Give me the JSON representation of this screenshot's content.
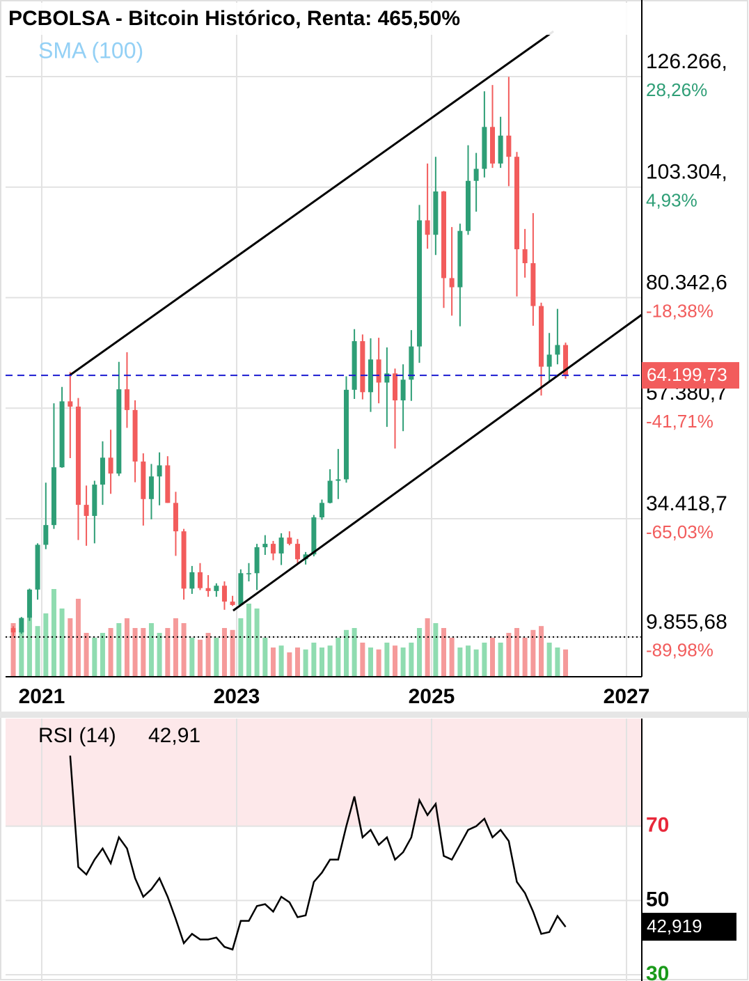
{
  "chart_data": [
    {
      "type": "candlestick",
      "title": "PCBOLSA - Bitcoin Histórico, Renta: 465,50%",
      "subtitle": "SMA (100)",
      "x": [
        2020.708,
        2020.792,
        2020.875,
        2020.958,
        2021.042,
        2021.125,
        2021.208,
        2021.292,
        2021.375,
        2021.458,
        2021.542,
        2021.625,
        2021.708,
        2021.792,
        2021.875,
        2021.958,
        2022.042,
        2022.125,
        2022.208,
        2022.292,
        2022.375,
        2022.458,
        2022.542,
        2022.625,
        2022.708,
        2022.792,
        2022.875,
        2022.958,
        2023.042,
        2023.125,
        2023.208,
        2023.292,
        2023.375,
        2023.458,
        2023.542,
        2023.625,
        2023.708,
        2023.792,
        2023.875,
        2023.958,
        2024.042,
        2024.125,
        2024.208,
        2024.292,
        2024.375,
        2024.458,
        2024.542,
        2024.625,
        2024.708,
        2024.792,
        2024.875,
        2024.958,
        2025.042,
        2025.125,
        2025.208,
        2025.292,
        2025.375,
        2025.458,
        2025.542,
        2025.625,
        2025.708,
        2025.792,
        2025.875,
        2025.958,
        2026.042,
        2026.125,
        2026.208,
        2026.292,
        2026.375
      ],
      "open": [
        11700,
        10800,
        13800,
        19700,
        29000,
        33100,
        45100,
        58800,
        57700,
        37300,
        35000,
        41500,
        47100,
        43800,
        61300,
        57000,
        46300,
        38500,
        43200,
        45500,
        37700,
        31800,
        19900,
        23300,
        20000,
        19400,
        20500,
        17200,
        16500,
        23100,
        23100,
        28500,
        29200,
        27200,
        30500,
        29200,
        26000,
        27000,
        34700,
        37700,
        42300,
        42600,
        61200,
        71300,
        60700,
        67500,
        62700,
        64600,
        59000,
        63300,
        70200,
        96400,
        93400,
        102400,
        84400,
        82500,
        94200,
        104600,
        107100,
        115800,
        108200,
        114000,
        109600,
        90400,
        87500,
        78600,
        66000,
        68500,
        70500
      ],
      "high": [
        12100,
        14000,
        19900,
        29300,
        41900,
        58400,
        61800,
        64900,
        59500,
        41300,
        42300,
        50500,
        52900,
        67000,
        69000,
        59000,
        48000,
        45800,
        48200,
        47400,
        40000,
        32300,
        24600,
        25200,
        22700,
        21000,
        21400,
        18400,
        23900,
        25200,
        29200,
        31000,
        29800,
        31400,
        31800,
        30200,
        27500,
        35200,
        38400,
        44700,
        48900,
        64000,
        73800,
        72700,
        71900,
        72000,
        70000,
        65600,
        66500,
        73600,
        99600,
        108200,
        109600,
        102500,
        95000,
        95700,
        112000,
        110400,
        123200,
        124500,
        117900,
        126200,
        110600,
        94600,
        97900,
        79300,
        73000,
        78000,
        71000
      ],
      "low": [
        10000,
        10500,
        13200,
        17600,
        28100,
        32300,
        45000,
        47000,
        30000,
        28800,
        29300,
        37300,
        39600,
        43300,
        53300,
        42000,
        33000,
        34300,
        37200,
        37700,
        26700,
        17600,
        18800,
        19600,
        18200,
        18200,
        15500,
        16300,
        16500,
        21400,
        19600,
        26900,
        25800,
        24800,
        28900,
        25200,
        24900,
        26600,
        34200,
        37600,
        38500,
        41900,
        59300,
        59200,
        56600,
        58400,
        53500,
        49000,
        52600,
        58900,
        66800,
        90500,
        89200,
        78200,
        76600,
        74400,
        93400,
        98200,
        105300,
        107300,
        107300,
        103500,
        80600,
        84500,
        74500,
        60000,
        63000,
        66500,
        63500
      ],
      "close": [
        10800,
        13800,
        19700,
        29000,
        33100,
        45100,
        58800,
        57700,
        37300,
        35000,
        41500,
        47100,
        43800,
        61300,
        57000,
        46300,
        38500,
        43200,
        45500,
        37700,
        31800,
        19900,
        23300,
        20000,
        19400,
        20500,
        17200,
        16500,
        23100,
        23100,
        28500,
        29200,
        27200,
        30500,
        29200,
        26000,
        27000,
        34700,
        37700,
        42300,
        42600,
        61200,
        71300,
        60700,
        67500,
        62700,
        64600,
        59000,
        63300,
        70200,
        96400,
        93400,
        102400,
        84400,
        82500,
        94200,
        104600,
        107100,
        115800,
        108200,
        114000,
        109600,
        90400,
        87500,
        78600,
        66000,
        68500,
        70500,
        64200
      ],
      "volume": [
        55,
        48,
        60,
        52,
        65,
        90,
        70,
        60,
        80,
        45,
        40,
        45,
        50,
        55,
        60,
        50,
        50,
        55,
        45,
        50,
        60,
        55,
        40,
        38,
        45,
        40,
        50,
        48,
        60,
        75,
        70,
        40,
        30,
        32,
        25,
        30,
        28,
        35,
        30,
        32,
        40,
        48,
        50,
        35,
        30,
        28,
        35,
        32,
        30,
        35,
        50,
        60,
        55,
        50,
        40,
        30,
        32,
        28,
        35,
        40,
        35,
        45,
        50,
        40,
        48,
        52,
        35,
        30,
        28
      ],
      "volume_ylim": [
        0,
        100
      ],
      "up_color": "#2e9e76",
      "down_color": "#f25c5c",
      "up_volume_color": "#8fdcb0",
      "down_volume_color": "#f59a9a",
      "xlim": [
        2020.629,
        2027.157
      ],
      "xticks": [
        2021,
        2023,
        2025,
        2027
      ],
      "ylim": [
        1590,
        142170
      ],
      "yticks": [
        {
          "value": 126266,
          "label": "126.266,",
          "change": {
            "value": 28.26,
            "label": "28,26%"
          }
        },
        {
          "value": 103304,
          "label": "103.304,",
          "change": {
            "value": 4.93,
            "label": "4,93%"
          }
        },
        {
          "value": 80342.6,
          "label": "80.342,6",
          "change": {
            "value": -18.38,
            "label": "-18,38%"
          }
        },
        {
          "value": 57380.7,
          "label": "57.380,7",
          "change": {
            "value": -41.71,
            "label": "-41,71%"
          }
        },
        {
          "value": 34418.7,
          "label": "34.418,7",
          "change": {
            "value": -65.03,
            "label": "-65,03%"
          }
        },
        {
          "value": 9855.68,
          "label": "9.855,68",
          "change": {
            "value": -89.98,
            "label": "-89,98%"
          }
        }
      ],
      "dotted_line_value": 9855.68,
      "last_price": {
        "value": 64199.73,
        "label": "64.199,73"
      },
      "channel_lines": [
        {
          "x": [
            2021.286,
            2026.25
          ],
          "y": [
            64200,
            135660
          ]
        },
        {
          "x": [
            2022.964,
            2027.157
          ],
          "y": [
            15326,
            76795
          ]
        }
      ],
      "grid": true
    },
    {
      "type": "line",
      "title": "RSI (14)",
      "legend_value": {
        "value": 42.91,
        "label": "42,91"
      },
      "last_value": {
        "value": 42.919,
        "label": "42,919"
      },
      "x": [
        2021.292,
        2021.375,
        2021.458,
        2021.542,
        2021.625,
        2021.708,
        2021.792,
        2021.875,
        2021.958,
        2022.042,
        2022.125,
        2022.208,
        2022.292,
        2022.375,
        2022.458,
        2022.542,
        2022.625,
        2022.708,
        2022.792,
        2022.875,
        2022.958,
        2023.042,
        2023.125,
        2023.208,
        2023.292,
        2023.375,
        2023.458,
        2023.542,
        2023.625,
        2023.708,
        2023.792,
        2023.875,
        2023.958,
        2024.042,
        2024.125,
        2024.208,
        2024.292,
        2024.375,
        2024.458,
        2024.542,
        2024.625,
        2024.708,
        2024.792,
        2024.875,
        2024.958,
        2025.042,
        2025.125,
        2025.208,
        2025.292,
        2025.375,
        2025.458,
        2025.542,
        2025.625,
        2025.708,
        2025.792,
        2025.875,
        2025.958,
        2026.042,
        2026.125,
        2026.208,
        2026.292,
        2026.375
      ],
      "values": [
        89,
        59,
        57,
        61,
        64,
        60,
        67,
        64,
        56,
        51,
        53,
        56,
        51,
        45,
        38.5,
        41,
        39.5,
        39.5,
        40,
        37.5,
        36.8,
        44.5,
        44.5,
        48.5,
        49,
        47,
        51,
        49.5,
        45.5,
        46,
        55,
        57.5,
        61,
        61,
        70,
        78,
        67,
        69,
        65,
        67,
        61,
        63,
        67,
        77,
        73,
        76,
        62,
        61,
        65,
        69,
        70,
        72,
        67,
        69,
        66,
        55,
        52,
        47,
        41,
        41.5,
        45.8,
        42.9
      ],
      "color": "#000000",
      "xlim": [
        2020.629,
        2027.157
      ],
      "xticks": [
        2021,
        2023,
        2025,
        2027
      ],
      "ylim": [
        30,
        99
      ],
      "yticks": [
        30,
        50,
        70
      ],
      "ytick_colors": [
        "#1a9a1a",
        "#000000",
        "#e8283a"
      ],
      "overbought": 70,
      "band_color": "#fde8ea",
      "grid": true
    }
  ]
}
